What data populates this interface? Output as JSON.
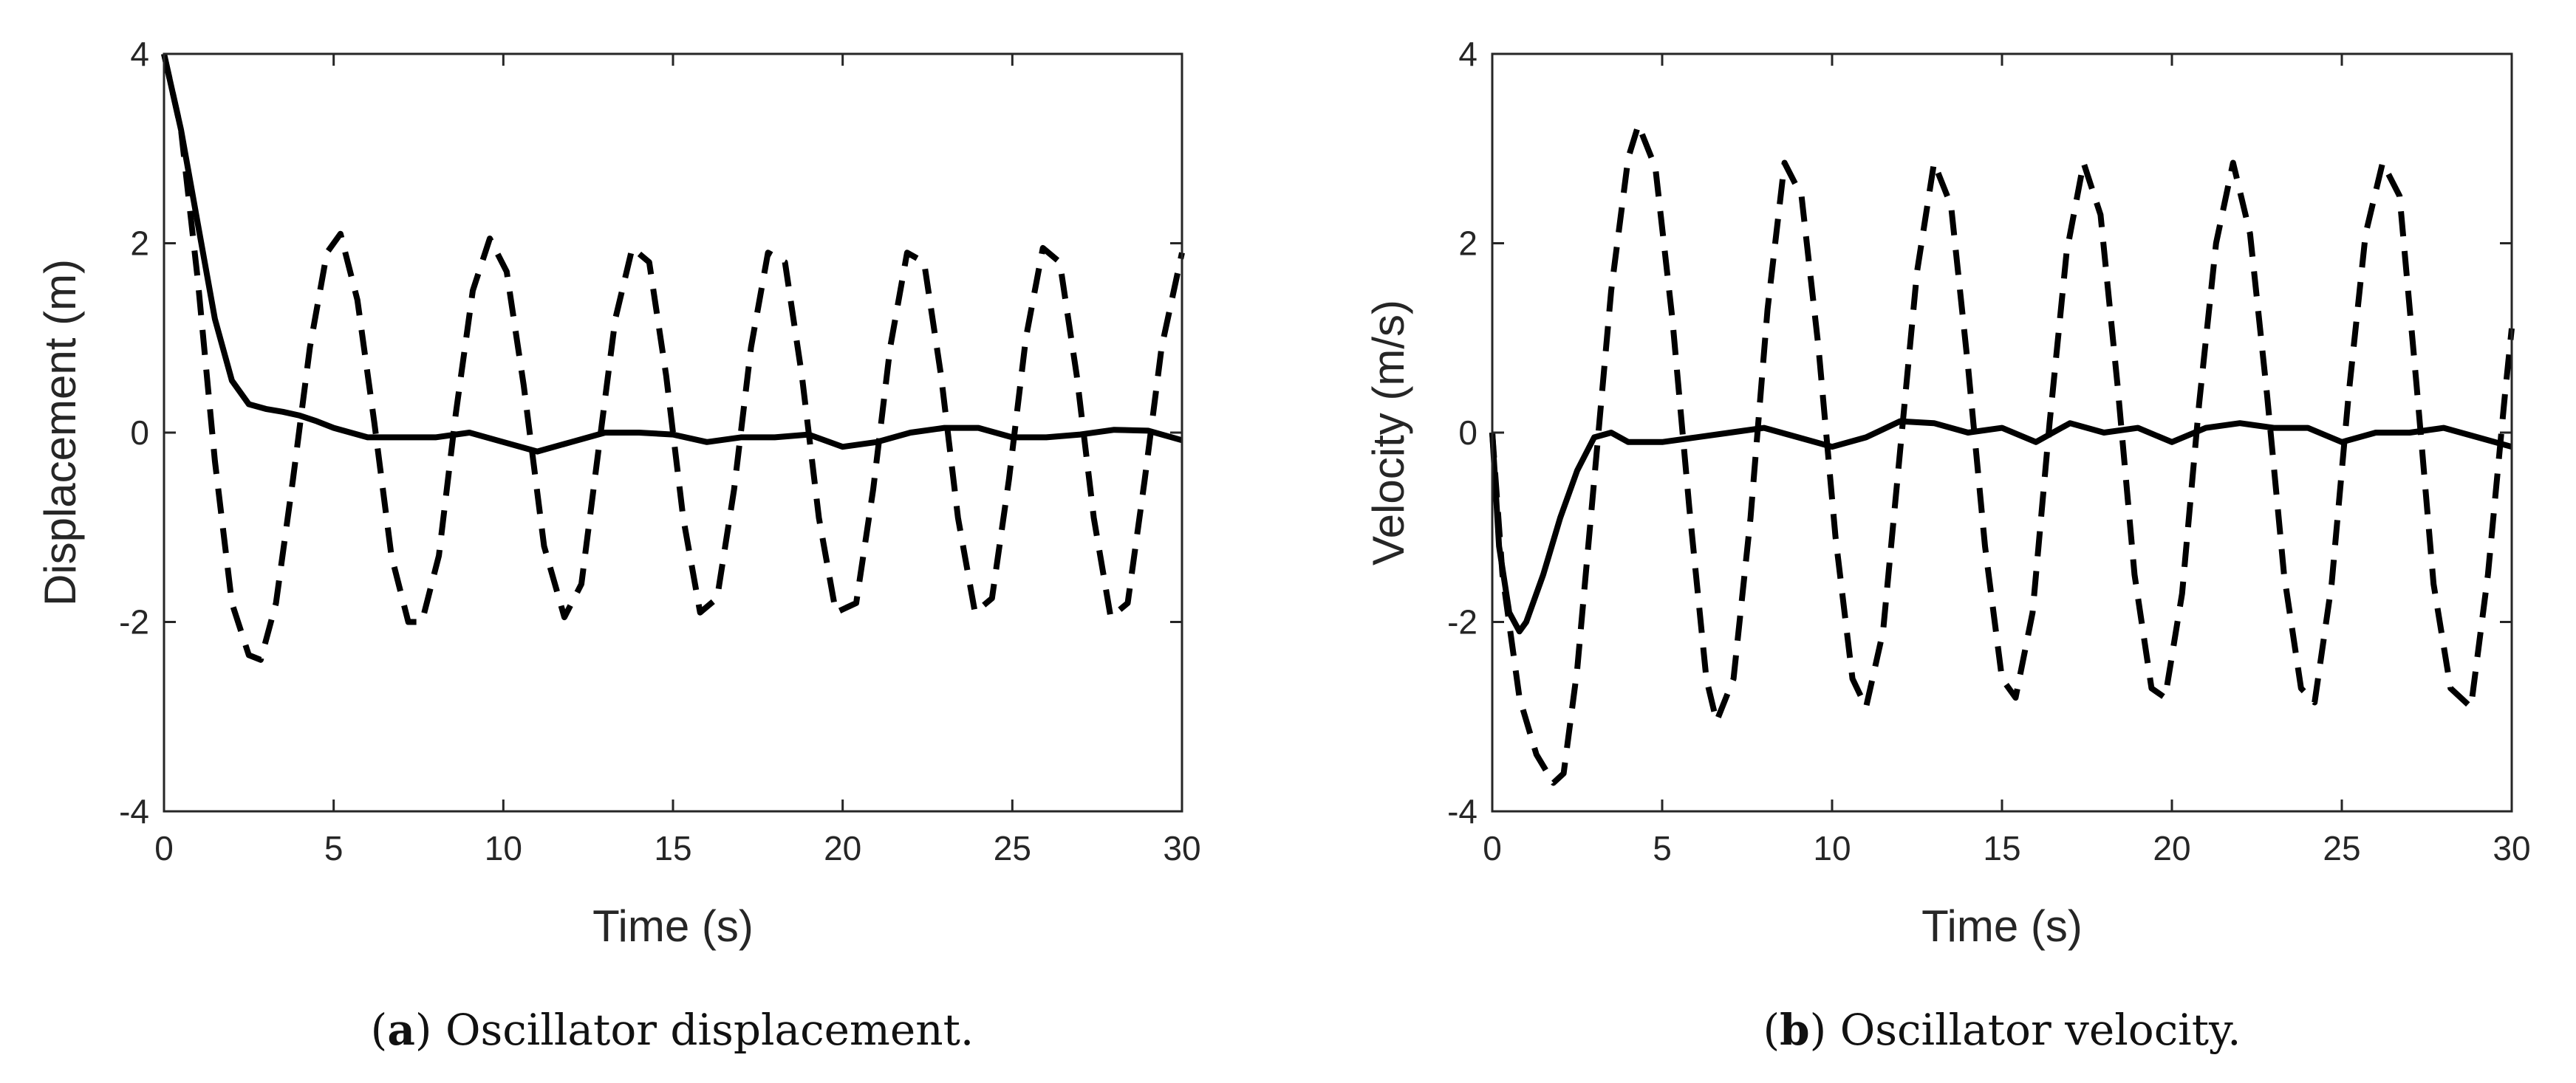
{
  "chart_data": [
    {
      "type": "line",
      "panel": "a",
      "caption_letter": "a",
      "caption_text": " Oscillator displacement.",
      "xlabel": "Time (s)",
      "ylabel": "Displacement (m)",
      "xlim": [
        0,
        30
      ],
      "ylim": [
        -4,
        4
      ],
      "xticks": [
        0,
        5,
        10,
        15,
        20,
        25,
        30
      ],
      "yticks": [
        -4,
        -2,
        0,
        2,
        4
      ],
      "grid": false,
      "series": [
        {
          "name": "dashed",
          "style": "dashed",
          "x": [
            0,
            0.5,
            1.0,
            1.5,
            2.0,
            2.5,
            2.85,
            3.3,
            3.8,
            4.3,
            4.8,
            5.2,
            5.7,
            6.2,
            6.7,
            7.2,
            7.6,
            8.1,
            8.6,
            9.1,
            9.6,
            10.1,
            10.6,
            11.2,
            11.8,
            12.3,
            12.8,
            13.3,
            13.8,
            14.3,
            14.8,
            15.3,
            15.8,
            16.3,
            16.8,
            17.3,
            17.8,
            18.3,
            18.8,
            19.3,
            19.8,
            20.4,
            20.9,
            21.4,
            21.9,
            22.4,
            22.9,
            23.4,
            23.9,
            24.4,
            24.9,
            25.4,
            25.9,
            26.4,
            26.9,
            27.4,
            27.9,
            28.4,
            28.9,
            29.4,
            30.0
          ],
          "values": [
            4.0,
            3.2,
            1.6,
            -0.3,
            -1.8,
            -2.35,
            -2.4,
            -1.8,
            -0.5,
            0.9,
            1.9,
            2.1,
            1.4,
            0.1,
            -1.3,
            -2.0,
            -2.0,
            -1.3,
            0.2,
            1.5,
            2.05,
            1.7,
            0.5,
            -1.2,
            -1.95,
            -1.6,
            -0.2,
            1.2,
            1.95,
            1.8,
            0.6,
            -0.9,
            -1.9,
            -1.75,
            -0.6,
            0.9,
            1.9,
            1.8,
            0.6,
            -0.9,
            -1.9,
            -1.8,
            -0.6,
            0.9,
            1.9,
            1.8,
            0.6,
            -0.9,
            -1.9,
            -1.75,
            -0.5,
            1.0,
            1.95,
            1.8,
            0.6,
            -0.9,
            -1.95,
            -1.8,
            -0.5,
            0.9,
            1.9
          ]
        },
        {
          "name": "solid",
          "style": "solid",
          "x": [
            0,
            0.5,
            1.0,
            1.5,
            2.0,
            2.5,
            3.0,
            3.5,
            4.0,
            4.5,
            5.0,
            6.0,
            7.0,
            8.0,
            9.0,
            10.0,
            11.0,
            12.0,
            13.0,
            14.0,
            15.0,
            16.0,
            17.0,
            18.0,
            19.0,
            20.0,
            21.0,
            22.0,
            23.0,
            24.0,
            25.0,
            26.0,
            27.0,
            28.0,
            29.0,
            30.0
          ],
          "values": [
            4.0,
            3.2,
            2.2,
            1.2,
            0.55,
            0.3,
            0.25,
            0.22,
            0.18,
            0.12,
            0.05,
            -0.05,
            -0.05,
            -0.05,
            0.0,
            -0.1,
            -0.2,
            -0.1,
            0.0,
            0.0,
            -0.02,
            -0.1,
            -0.05,
            -0.05,
            -0.02,
            -0.15,
            -0.1,
            0.0,
            0.05,
            0.05,
            -0.05,
            -0.05,
            -0.02,
            0.03,
            0.02,
            -0.08
          ]
        }
      ]
    },
    {
      "type": "line",
      "panel": "b",
      "caption_letter": "b",
      "caption_text": " Oscillator velocity.",
      "xlabel": "Time (s)",
      "ylabel": "Velocity (m/s)",
      "xlim": [
        0,
        30
      ],
      "ylim": [
        -4,
        4
      ],
      "xticks": [
        0,
        5,
        10,
        15,
        20,
        25,
        30
      ],
      "yticks": [
        -4,
        -2,
        0,
        2,
        4
      ],
      "grid": false,
      "series": [
        {
          "name": "dashed",
          "style": "dashed",
          "x": [
            0,
            0.3,
            0.8,
            1.3,
            1.8,
            2.1,
            2.5,
            3.0,
            3.5,
            4.0,
            4.3,
            4.8,
            5.3,
            5.8,
            6.3,
            6.6,
            7.1,
            7.6,
            8.1,
            8.6,
            9.1,
            9.6,
            10.1,
            10.6,
            11.0,
            11.5,
            12.0,
            12.5,
            13.0,
            13.5,
            14.0,
            14.5,
            15.0,
            15.4,
            15.9,
            16.4,
            16.9,
            17.4,
            17.9,
            18.4,
            18.9,
            19.4,
            19.8,
            20.3,
            20.8,
            21.3,
            21.8,
            22.3,
            22.8,
            23.3,
            23.8,
            24.2,
            24.7,
            25.2,
            25.7,
            26.2,
            26.7,
            27.2,
            27.7,
            28.2,
            28.8,
            29.3,
            29.8,
            30.0
          ],
          "values": [
            0.0,
            -1.5,
            -2.8,
            -3.4,
            -3.7,
            -3.6,
            -2.5,
            -0.5,
            1.5,
            2.9,
            3.25,
            2.8,
            1.2,
            -0.8,
            -2.6,
            -3.05,
            -2.6,
            -0.9,
            1.3,
            2.85,
            2.5,
            0.9,
            -1.1,
            -2.6,
            -2.9,
            -2.1,
            -0.2,
            1.7,
            2.85,
            2.4,
            0.7,
            -1.2,
            -2.6,
            -2.8,
            -1.9,
            0.1,
            1.9,
            2.85,
            2.3,
            0.5,
            -1.5,
            -2.7,
            -2.8,
            -1.7,
            0.3,
            2.0,
            2.85,
            2.1,
            0.4,
            -1.5,
            -2.7,
            -2.85,
            -1.6,
            0.4,
            2.1,
            2.85,
            2.5,
            0.5,
            -1.6,
            -2.7,
            -2.9,
            -1.5,
            0.4,
            1.1
          ]
        },
        {
          "name": "solid",
          "style": "solid",
          "x": [
            0,
            0.2,
            0.5,
            0.8,
            1.0,
            1.5,
            2.0,
            2.5,
            3.0,
            3.5,
            4.0,
            5.0,
            6.0,
            7.0,
            8.0,
            9.0,
            10.0,
            11.0,
            12.0,
            13.0,
            14.0,
            15.0,
            16.0,
            17.0,
            18.0,
            19.0,
            20.0,
            21.0,
            22.0,
            23.0,
            24.0,
            25.0,
            26.0,
            27.0,
            28.0,
            29.0,
            30.0
          ],
          "values": [
            0.0,
            -1.2,
            -1.9,
            -2.1,
            -2.0,
            -1.5,
            -0.9,
            -0.4,
            -0.05,
            0.0,
            -0.1,
            -0.1,
            -0.05,
            0.0,
            0.05,
            -0.05,
            -0.15,
            -0.05,
            0.12,
            0.1,
            0.0,
            0.05,
            -0.1,
            0.1,
            0.0,
            0.05,
            -0.1,
            0.05,
            0.1,
            0.05,
            0.05,
            -0.1,
            0.0,
            0.0,
            0.05,
            -0.05,
            -0.15
          ]
        }
      ]
    }
  ]
}
